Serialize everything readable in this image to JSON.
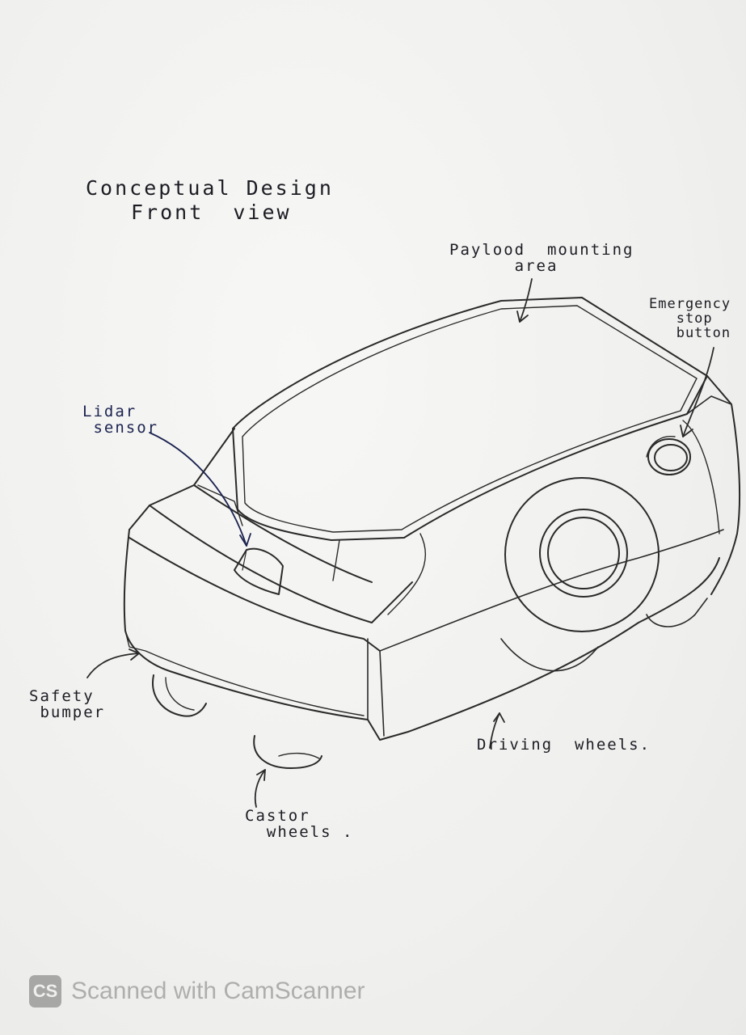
{
  "title": {
    "line1": "Conceptual Design",
    "line2": "Front  view"
  },
  "labels": {
    "payload": "Paylood  mounting\n      area",
    "emergency": "Emergency\n   stop\n   button",
    "lidar": "Lidar\n sensor",
    "bumper": "Safety\n bumper",
    "driving": "Driving  wheels.",
    "castor": "Castor\n  wheels ."
  },
  "watermark": {
    "logo": "CS",
    "text": "Scanned with CamScanner"
  }
}
